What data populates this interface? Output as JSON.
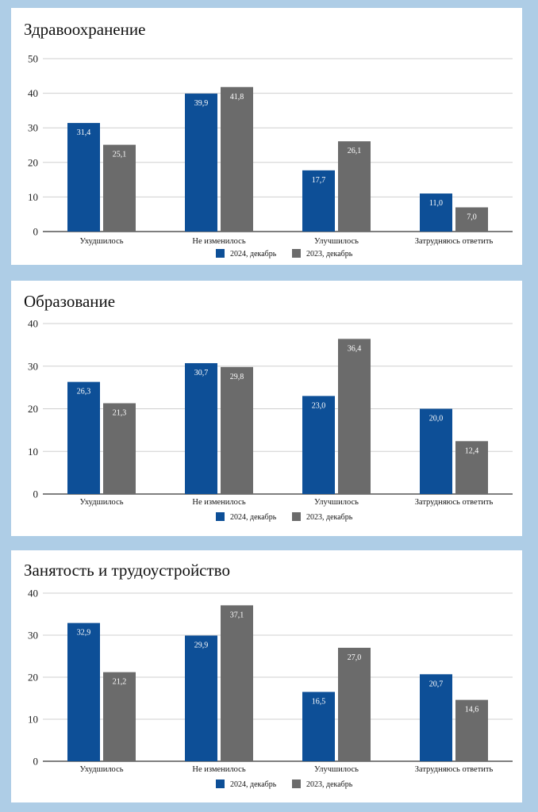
{
  "colors": {
    "series_2024": "#0d4f97",
    "series_2023": "#6b6b6b",
    "background": "#aecde6"
  },
  "legend": [
    "2024, декабрь",
    "2023, декабрь"
  ],
  "chart_data": [
    {
      "type": "bar",
      "title": "Здравоохранение",
      "categories": [
        "Ухудшилось",
        "Не изменилось",
        "Улучшилось",
        "Затрудняюсь ответить"
      ],
      "series": [
        {
          "name": "2024, декабрь",
          "values": [
            31.4,
            39.9,
            17.7,
            11.0
          ],
          "labels": [
            "31,4",
            "39,9",
            "17,7",
            "11,0"
          ]
        },
        {
          "name": "2023, декабрь",
          "values": [
            25.1,
            41.8,
            26.1,
            7.0
          ],
          "labels": [
            "25,1",
            "41,8",
            "26,1",
            "7,0"
          ]
        }
      ],
      "ylim": [
        0,
        50
      ],
      "yticks": [
        0,
        10,
        20,
        30,
        40,
        50
      ],
      "grid": true,
      "legend_position": "bottom"
    },
    {
      "type": "bar",
      "title": "Образование",
      "categories": [
        "Ухудшилось",
        "Не изменилось",
        "Улучшилось",
        "Затрудняюсь ответить"
      ],
      "series": [
        {
          "name": "2024, декабрь",
          "values": [
            26.3,
            30.7,
            23.0,
            20.0
          ],
          "labels": [
            "26,3",
            "30,7",
            "23,0",
            "20,0"
          ]
        },
        {
          "name": "2023, декабрь",
          "values": [
            21.3,
            29.8,
            36.4,
            12.4
          ],
          "labels": [
            "21,3",
            "29,8",
            "36,4",
            "12,4"
          ]
        }
      ],
      "ylim": [
        0,
        40
      ],
      "yticks": [
        0,
        10,
        20,
        30,
        40
      ],
      "grid": true,
      "legend_position": "bottom"
    },
    {
      "type": "bar",
      "title": "Занятость и трудоустройство",
      "categories": [
        "Ухудшилось",
        "Не изменилось",
        "Улучшилось",
        "Затрудняюсь ответить"
      ],
      "series": [
        {
          "name": "2024, декабрь",
          "values": [
            32.9,
            29.9,
            16.5,
            20.7
          ],
          "labels": [
            "32,9",
            "29,9",
            "16,5",
            "20,7"
          ]
        },
        {
          "name": "2023, декабрь",
          "values": [
            21.2,
            37.1,
            27.0,
            14.6
          ],
          "labels": [
            "21,2",
            "37,1",
            "27,0",
            "14,6"
          ]
        }
      ],
      "ylim": [
        0,
        40
      ],
      "yticks": [
        0,
        10,
        20,
        30,
        40
      ],
      "grid": true,
      "legend_position": "bottom"
    }
  ]
}
